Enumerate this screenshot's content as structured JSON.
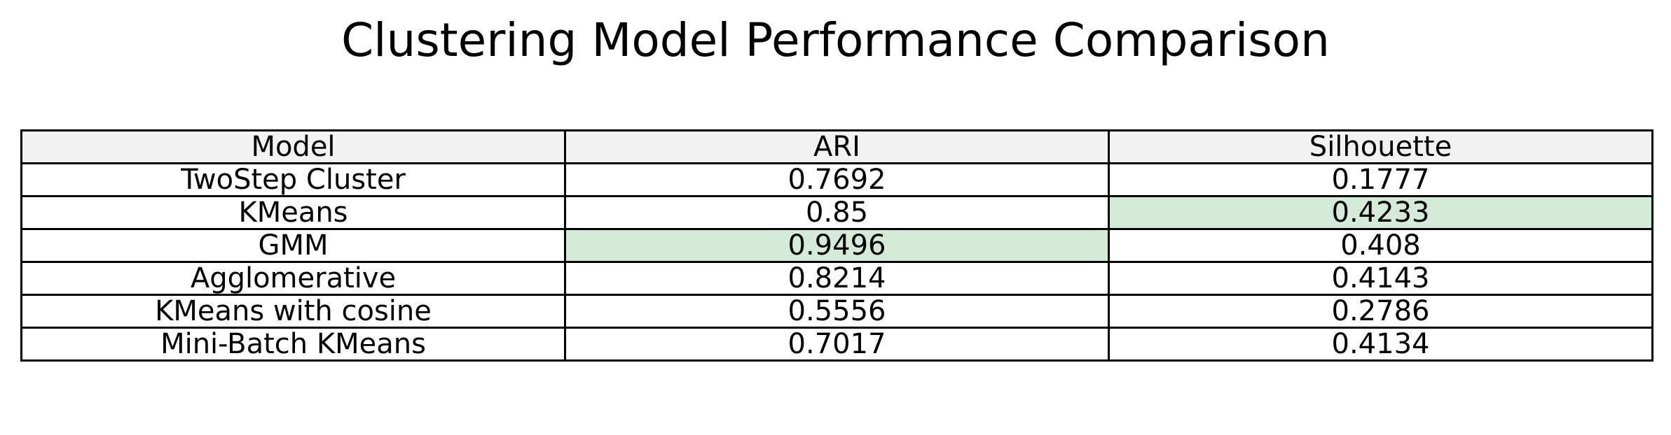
{
  "chart_data": {
    "type": "table",
    "title": "Clustering Model Performance Comparison",
    "columns": [
      "Model",
      "ARI",
      "Silhouette"
    ],
    "rows": [
      {
        "model": "TwoStep Cluster",
        "ari": "0.7692",
        "silhouette": "0.1777",
        "best": []
      },
      {
        "model": "KMeans",
        "ari": "0.85",
        "silhouette": "0.4233",
        "best": [
          "silhouette"
        ]
      },
      {
        "model": "GMM",
        "ari": "0.9496",
        "silhouette": "0.408",
        "best": [
          "ari"
        ]
      },
      {
        "model": "Agglomerative",
        "ari": "0.8214",
        "silhouette": "0.4143",
        "best": []
      },
      {
        "model": "KMeans with cosine",
        "ari": "0.5556",
        "silhouette": "0.2786",
        "best": []
      },
      {
        "model": "Mini-Batch KMeans",
        "ari": "0.7017",
        "silhouette": "0.4134",
        "best": []
      }
    ],
    "colors": {
      "header_background": "#f2f2f2",
      "highlight_background": "#d4ebda",
      "cell_background": "#ffffff",
      "border": "#000000"
    }
  }
}
